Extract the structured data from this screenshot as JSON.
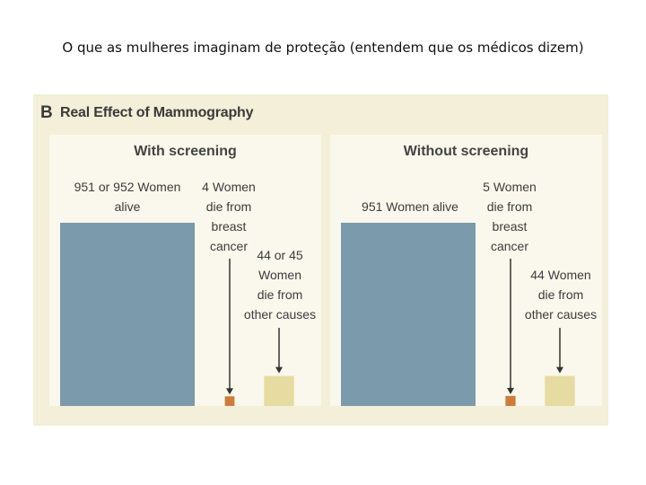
{
  "slide": {
    "title": "O que as mulheres imaginam de proteção (entendem que os médicos dizem)"
  },
  "figure": {
    "letter": "B",
    "title": "Real Effect of Mammography"
  },
  "colors": {
    "alive": "#7b9aac",
    "breast_cancer": "#cf7c3a",
    "other_causes": "#e6dba0",
    "arrow": "#333333"
  },
  "chart_data": [
    {
      "type": "bar",
      "title": "With screening",
      "categories": [
        "alive",
        "breast cancer deaths",
        "other-cause deaths"
      ],
      "values": [
        951,
        4,
        44
      ],
      "labels": {
        "alive": [
          "951 or 952 Women",
          "alive"
        ],
        "breast_cancer": [
          "4 Women",
          "die from",
          "breast",
          "cancer"
        ],
        "other": [
          "44 or 45",
          "Women",
          "die from",
          "other causes"
        ]
      }
    },
    {
      "type": "bar",
      "title": "Without screening",
      "categories": [
        "alive",
        "breast cancer deaths",
        "other-cause deaths"
      ],
      "values": [
        951,
        5,
        44
      ],
      "labels": {
        "alive": [
          "951 Women alive"
        ],
        "breast_cancer": [
          "5 Women",
          "die from",
          "breast",
          "cancer"
        ],
        "other": [
          "44 Women",
          "die from",
          "other causes"
        ]
      }
    }
  ]
}
